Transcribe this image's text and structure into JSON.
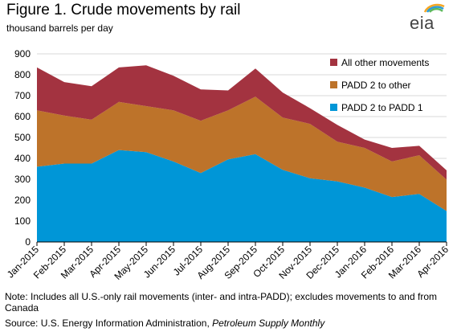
{
  "header": {
    "title": "Figure 1. Crude movements by rail",
    "subtitle": "thousand barrels per day",
    "logo_text": "eia"
  },
  "footer": {
    "note": "Note: Includes all U.S.-only rail movements (inter- and intra-PADD); excludes movements to and from Canada",
    "source_prefix": "Source: U.S. Energy Information Administration, ",
    "source_publication": "Petroleum Supply Monthly"
  },
  "colors": {
    "padd2_to_padd1": "#0096d7",
    "padd2_to_other": "#bd732a",
    "all_other": "#a33340",
    "gridline": "#d9d9d9",
    "axis": "#000000"
  },
  "chart_data": {
    "type": "area",
    "stacked": true,
    "title": "Figure 1. Crude movements by rail",
    "ylabel": "thousand barrels per day",
    "xlabel": "",
    "ylim": [
      0,
      900
    ],
    "yticks": [
      0,
      100,
      200,
      300,
      400,
      500,
      600,
      700,
      800,
      900
    ],
    "grid": true,
    "legend_position": "top-right",
    "x": [
      "Jan-2015",
      "Feb-2015",
      "Mar-2015",
      "Apr-2015",
      "May-2015",
      "Jun-2015",
      "Jul-2015",
      "Aug-2015",
      "Sep-2015",
      "Oct-2015",
      "Nov-2015",
      "Dec-2015",
      "Jan-2016",
      "Feb-2016",
      "Mar-2016",
      "Apr-2016"
    ],
    "series": [
      {
        "name": "PADD 2 to PADD 1",
        "color": "#0096d7",
        "values": [
          360,
          375,
          375,
          440,
          430,
          385,
          330,
          395,
          420,
          345,
          305,
          290,
          260,
          215,
          230,
          148
        ]
      },
      {
        "name": "PADD 2 to other",
        "color": "#bd732a",
        "values": [
          270,
          230,
          210,
          230,
          220,
          245,
          250,
          235,
          275,
          250,
          260,
          190,
          190,
          170,
          185,
          150
        ]
      },
      {
        "name": "All other movements",
        "color": "#a33340",
        "values": [
          205,
          160,
          160,
          165,
          195,
          165,
          150,
          95,
          135,
          120,
          75,
          80,
          40,
          65,
          45,
          45
        ]
      }
    ],
    "legend_order": [
      "All other movements",
      "PADD 2 to other",
      "PADD 2 to PADD 1"
    ]
  }
}
